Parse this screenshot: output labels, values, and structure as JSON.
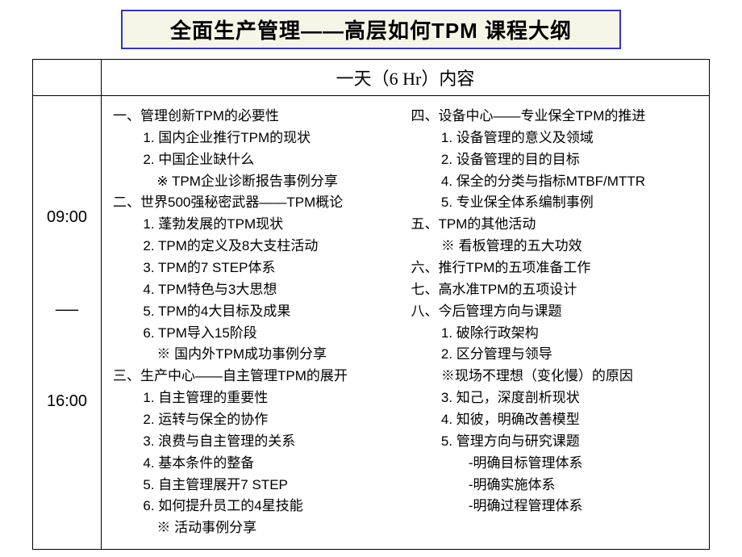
{
  "title": "全面生产管理——高层如何TPM 课程大纲",
  "header_time_col": "",
  "header_content": "一天（6 Hr）内容",
  "time_start": "09:00",
  "time_sep": "—",
  "time_end": "16:00",
  "left": {
    "s1_h": "一、管理创新TPM的必要性",
    "s1_1": "1. 国内企业推行TPM的现状",
    "s1_2": "2. 中国企业缺什么",
    "s1_x": "※ TPM企业诊断报告事例分享",
    "s2_h": "二、世界500强秘密武器——TPM概论",
    "s2_1": "1. 蓬勃发展的TPM现状",
    "s2_2": "2. TPM的定义及8大支柱活动",
    "s2_3": "3. TPM的7 STEP体系",
    "s2_4": "4. TPM特色与3大思想",
    "s2_5": "5. TPM的4大目标及成果",
    "s2_6": "6. TPM导入15阶段",
    "s2_x": "※ 国内外TPM成功事例分享",
    "s3_h": "三、生产中心——自主管理TPM的展开",
    "s3_1": "1. 自主管理的重要性",
    "s3_2": "2. 运转与保全的协作",
    "s3_3": "3. 浪费与自主管理的关系",
    "s3_4": "4. 基本条件的整备",
    "s3_5": "5. 自主管理展开7 STEP",
    "s3_6": "6. 如何提升员工的4星技能",
    "s3_x": "※ 活动事例分享"
  },
  "right": {
    "s4_h": "四、设备中心——专业保全TPM的推进",
    "s4_1": "1. 设备管理的意义及领域",
    "s4_2": "2. 设备管理的目的目标",
    "s4_4": "4. 保全的分类与指标MTBF/MTTR",
    "s4_5": "5. 专业保全体系编制事例",
    "s5_h": "五、TPM的其他活动",
    "s5_x": "※ 看板管理的五大功效",
    "s6_h": "六、推行TPM的五项准备工作",
    "s7_h": "七、高水准TPM的五项设计",
    "s8_h": "八、今后管理方向与课题",
    "s8_1": "1. 破除行政架构",
    "s8_2": "2. 区分管理与领导",
    "s8_x": "※现场不理想（变化慢）的原因",
    "s8_3": "3. 知己，深度剖析现状",
    "s8_4": "4. 知彼，明确改善模型",
    "s8_5": "5. 管理方向与研究课题",
    "s8_5a": "-明确目标管理体系",
    "s8_5b": "-明确实施体系",
    "s8_5c": "-明确过程管理体系"
  },
  "colors": {
    "title_border": "#3333cc",
    "title_bg": "#f5f5e8",
    "table_border": "#000000",
    "text": "#000000",
    "background": "#ffffff"
  }
}
